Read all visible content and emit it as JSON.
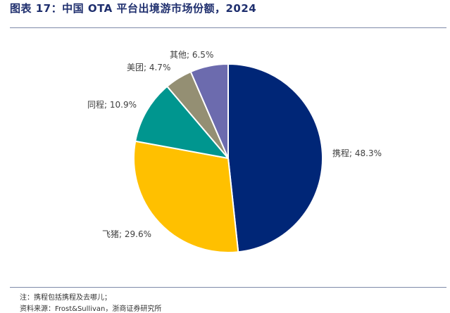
{
  "figure": {
    "title": "图表 17：中国 OTA 平台出境游市场份额，2024",
    "note": "注：携程包括携程及去哪儿；",
    "source": "资料来源：Frost&Sullivan，浙商证券研究所"
  },
  "chart_data": {
    "type": "pie",
    "title": "",
    "labels": [
      "携程",
      "飞猪",
      "同程",
      "美团",
      "其他"
    ],
    "values": [
      48.3,
      29.6,
      10.9,
      4.7,
      6.5
    ],
    "display_labels": [
      "携程; 48.3%",
      "飞猪; 29.6%",
      "同程; 10.9%",
      "美团; 4.7%",
      "其他; 6.5%"
    ],
    "colors": [
      "#002677",
      "#FFC000",
      "#00968F",
      "#948F73",
      "#6C6BAE"
    ],
    "start": "12 o'clock",
    "direction": "clockwise",
    "slice_border": "#ffffff",
    "legend": "none"
  }
}
